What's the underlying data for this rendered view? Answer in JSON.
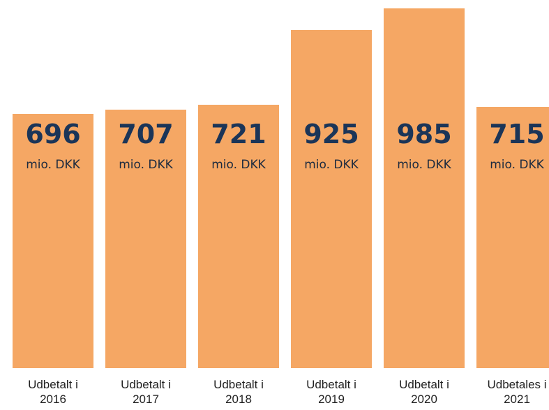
{
  "chart_data": {
    "type": "bar",
    "categories": [
      "Udbetalt i 2016",
      "Udbetalt i 2017",
      "Udbetalt i 2018",
      "Udbetalt i 2019",
      "Udbetalt i 2020",
      "Udbetales i 2021"
    ],
    "values": [
      696,
      707,
      721,
      925,
      985,
      715
    ],
    "unit": "mio. DKK",
    "color": "#f5a764"
  }
}
